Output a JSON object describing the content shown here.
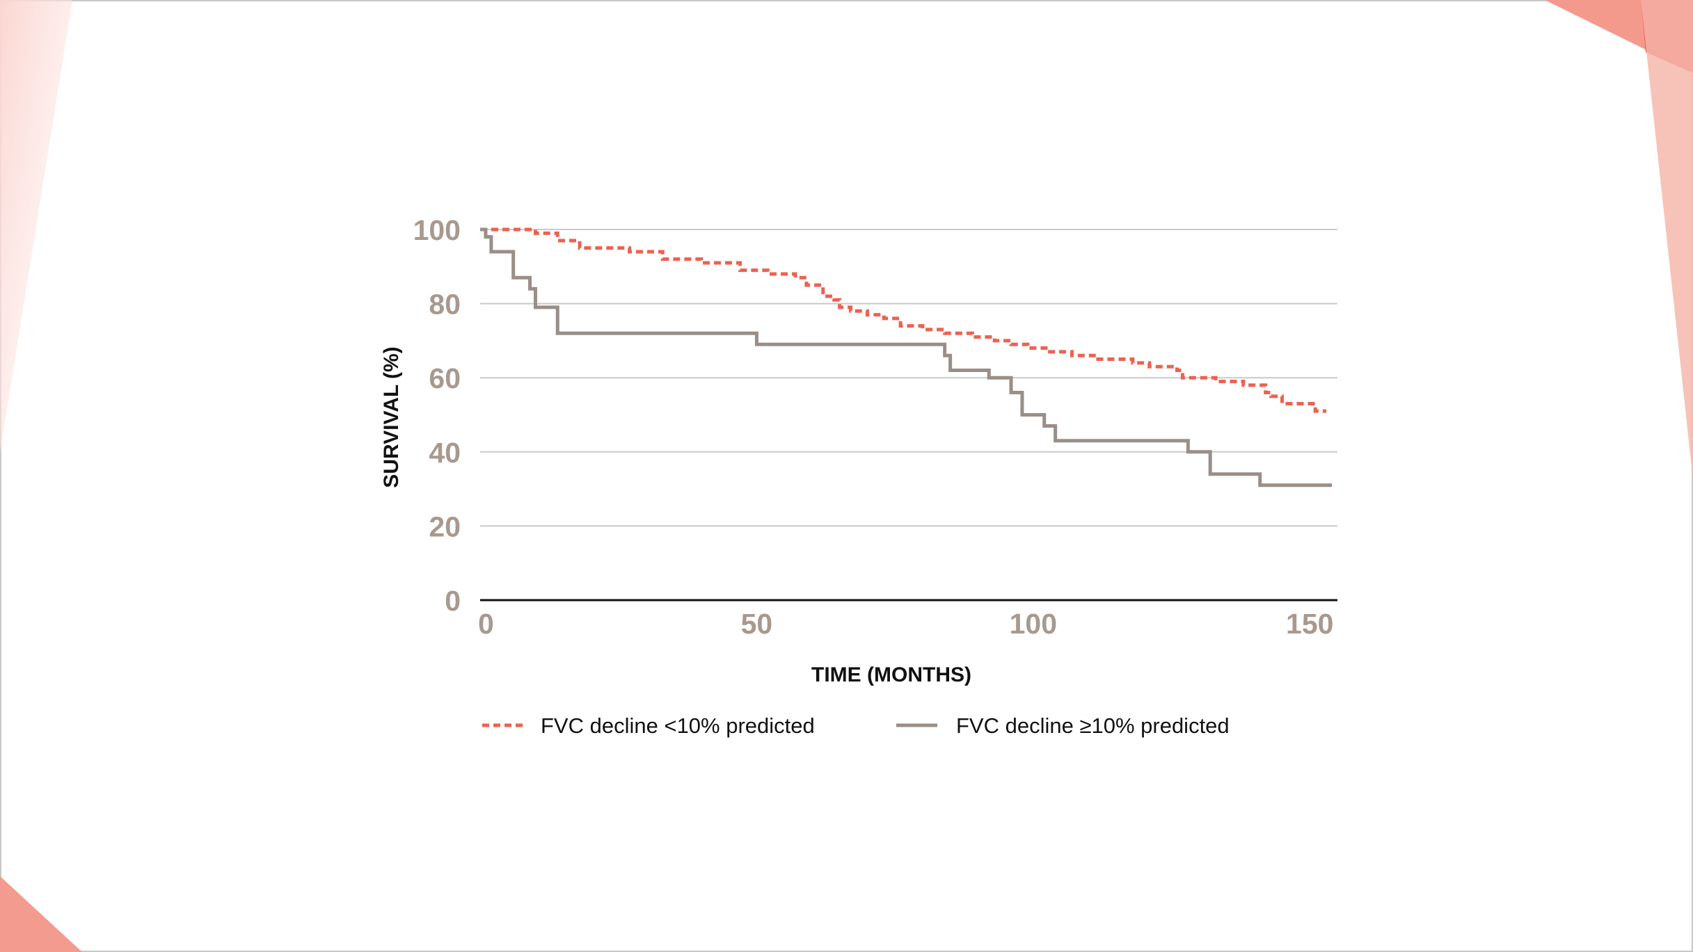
{
  "colors": {
    "accent": "#ee6150",
    "accent_light": "#f6b0a6",
    "series_gray": "#9a8e89",
    "tick_text": "#a8998f",
    "grid": "#c9c9c9",
    "axis": "#111111"
  },
  "chart_data": {
    "type": "line",
    "title": "",
    "xlabel": "TIME (MONTHS)",
    "ylabel": "SURVIVAL (%)",
    "xlim": [
      0,
      155
    ],
    "ylim": [
      0,
      100
    ],
    "x_ticks": [
      0,
      50,
      100,
      150
    ],
    "y_ticks": [
      0,
      20,
      40,
      60,
      80,
      100
    ],
    "grid": "horizontal",
    "legend_position": "bottom",
    "series": [
      {
        "name": "FVC decline <10% predicted",
        "style": "dashed-step",
        "color": "#ee6150",
        "x": [
          0,
          10,
          14,
          18,
          27,
          33,
          40,
          47,
          52,
          57,
          59,
          62,
          64,
          65,
          67,
          70,
          73,
          76,
          80,
          84,
          89,
          93,
          96,
          99,
          103,
          107,
          111,
          118,
          121,
          126,
          127,
          133,
          138,
          142,
          143,
          145,
          151,
          153
        ],
        "y": [
          100,
          99,
          97,
          95,
          94,
          92,
          91,
          89,
          88,
          87,
          85,
          82,
          81,
          79,
          78,
          77,
          76,
          74,
          73,
          72,
          71,
          70,
          69,
          68,
          67,
          66,
          65,
          64,
          63,
          62,
          60,
          59,
          58,
          56,
          55,
          53,
          51,
          51
        ]
      },
      {
        "name": "FVC decline ≥10% predicted",
        "style": "solid-step",
        "color": "#9a8e89",
        "x": [
          0,
          1,
          2,
          6,
          9,
          10,
          14,
          50,
          84,
          85,
          92,
          96,
          98,
          102,
          104,
          128,
          132,
          141,
          154
        ],
        "y": [
          100,
          98,
          94,
          87,
          84,
          79,
          72,
          69,
          66,
          62,
          60,
          56,
          50,
          47,
          43,
          40,
          34,
          31,
          31
        ]
      }
    ]
  }
}
